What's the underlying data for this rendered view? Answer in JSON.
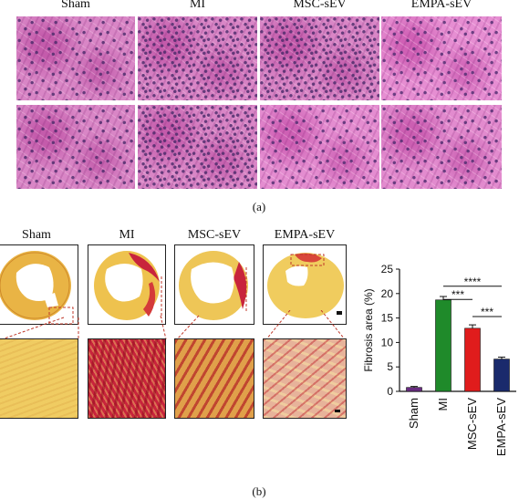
{
  "figure_a": {
    "columns": [
      "Sham",
      "MI",
      "MSC-sEV",
      "EMPA-sEV"
    ],
    "panel_label": "(a)"
  },
  "figure_b": {
    "columns": [
      "Sham",
      "MI",
      "MSC-sEV",
      "EMPA-sEV"
    ],
    "panel_label": "(b)"
  },
  "colors": {
    "sham": "#6a2c82",
    "mi": "#1f8a2a",
    "msc": "#e01c1c",
    "empa": "#1a2a6c"
  },
  "chart_data": {
    "type": "bar",
    "categories": [
      "Sham",
      "MI",
      "MSC-sEV",
      "EMPA-sEV"
    ],
    "values": [
      0.8,
      18.7,
      12.9,
      6.6
    ],
    "errors": [
      0.2,
      0.7,
      0.7,
      0.4
    ],
    "ylabel": "Fibrosis area (%)",
    "ylim": [
      0,
      25
    ],
    "yticks": [
      "0",
      "5",
      "10",
      "15",
      "20",
      "25"
    ],
    "significance": [
      "****",
      "***",
      "***"
    ]
  }
}
